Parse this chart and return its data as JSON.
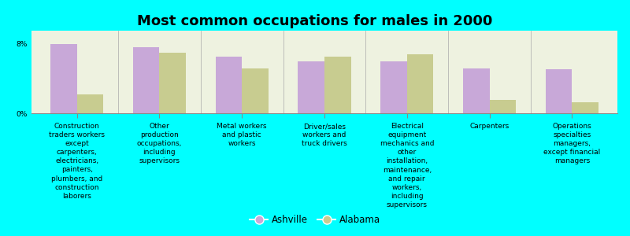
{
  "title": "Most common occupations for males in 2000",
  "background_color": "#00FFFF",
  "plot_bg_color": "#EEF2E0",
  "bar_width": 0.32,
  "categories": [
    "Construction\ntraders workers\nexcept\ncarpenters,\nelectricians,\npainters,\nplumbers, and\nconstruction\nlaborers",
    "Other\nproduction\noccupations,\nincluding\nsupervisors",
    "Metal workers\nand plastic\nworkers",
    "Driver/sales\nworkers and\ntruck drivers",
    "Electrical\nequipment\nmechanics and\nother\ninstallation,\nmaintenance,\nand repair\nworkers,\nincluding\nsupervisors",
    "Carpenters",
    "Operations\nspecialties\nmanagers,\nexcept financial\nmanagers"
  ],
  "ashville_values": [
    8.0,
    7.6,
    6.5,
    6.0,
    6.0,
    5.2,
    5.1
  ],
  "alabama_values": [
    2.2,
    7.0,
    5.2,
    6.5,
    6.8,
    1.5,
    1.3
  ],
  "ashville_color": "#C8A8D8",
  "alabama_color": "#C8CC90",
  "ylim": [
    0,
    9.5
  ],
  "yticks": [
    0,
    8
  ],
  "ytick_labels": [
    "0%",
    "8%"
  ],
  "legend_labels": [
    "Ashville",
    "Alabama"
  ],
  "title_fontsize": 13,
  "tick_fontsize": 6.5,
  "legend_fontsize": 8.5,
  "divider_color": "#AAAAAA",
  "spine_color": "#888888"
}
